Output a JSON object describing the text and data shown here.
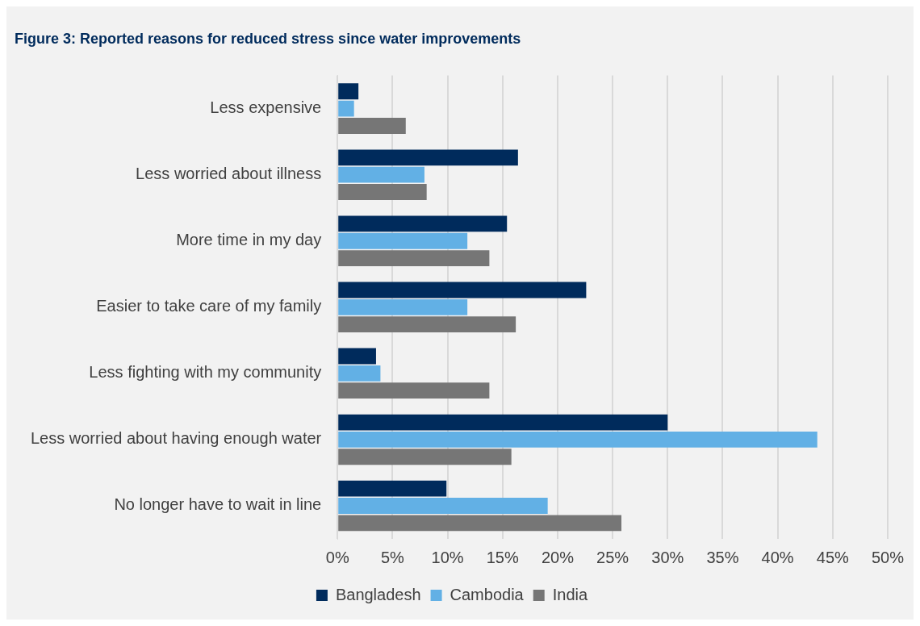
{
  "chart_data": {
    "type": "bar",
    "orientation": "horizontal",
    "title": "Figure 3: Reported reasons for reduced stress since water improvements",
    "categories": [
      "Less expensive",
      "Less worried about illness",
      "More time in my day",
      "Easier to take care of my family",
      "Less fighting with my community",
      "Less worried about having enough water",
      "No longer have to wait in line"
    ],
    "series": [
      {
        "name": "Bangladesh",
        "color": "#002b5c",
        "values": [
          1.9,
          16.4,
          15.4,
          22.6,
          3.5,
          30.0,
          9.9
        ]
      },
      {
        "name": "Cambodia",
        "color": "#62b0e5",
        "values": [
          1.5,
          7.9,
          11.8,
          11.8,
          3.9,
          43.6,
          19.1
        ]
      },
      {
        "name": "India",
        "color": "#767676",
        "values": [
          6.2,
          8.1,
          13.8,
          16.2,
          13.8,
          15.8,
          25.8
        ]
      }
    ],
    "xlim": [
      0,
      50
    ],
    "xticks": [
      {
        "value": 0,
        "label": "0%"
      },
      {
        "value": 5,
        "label": "5%"
      },
      {
        "value": 10,
        "label": "10%"
      },
      {
        "value": 15,
        "label": "15%"
      },
      {
        "value": 20,
        "label": "20%"
      },
      {
        "value": 25,
        "label": "25%"
      },
      {
        "value": 30,
        "label": "30%"
      },
      {
        "value": 35,
        "label": "35%"
      },
      {
        "value": 40,
        "label": "40%"
      },
      {
        "value": 45,
        "label": "45%"
      },
      {
        "value": 50,
        "label": "50%"
      }
    ],
    "grid": "x",
    "legend": "bottom"
  }
}
